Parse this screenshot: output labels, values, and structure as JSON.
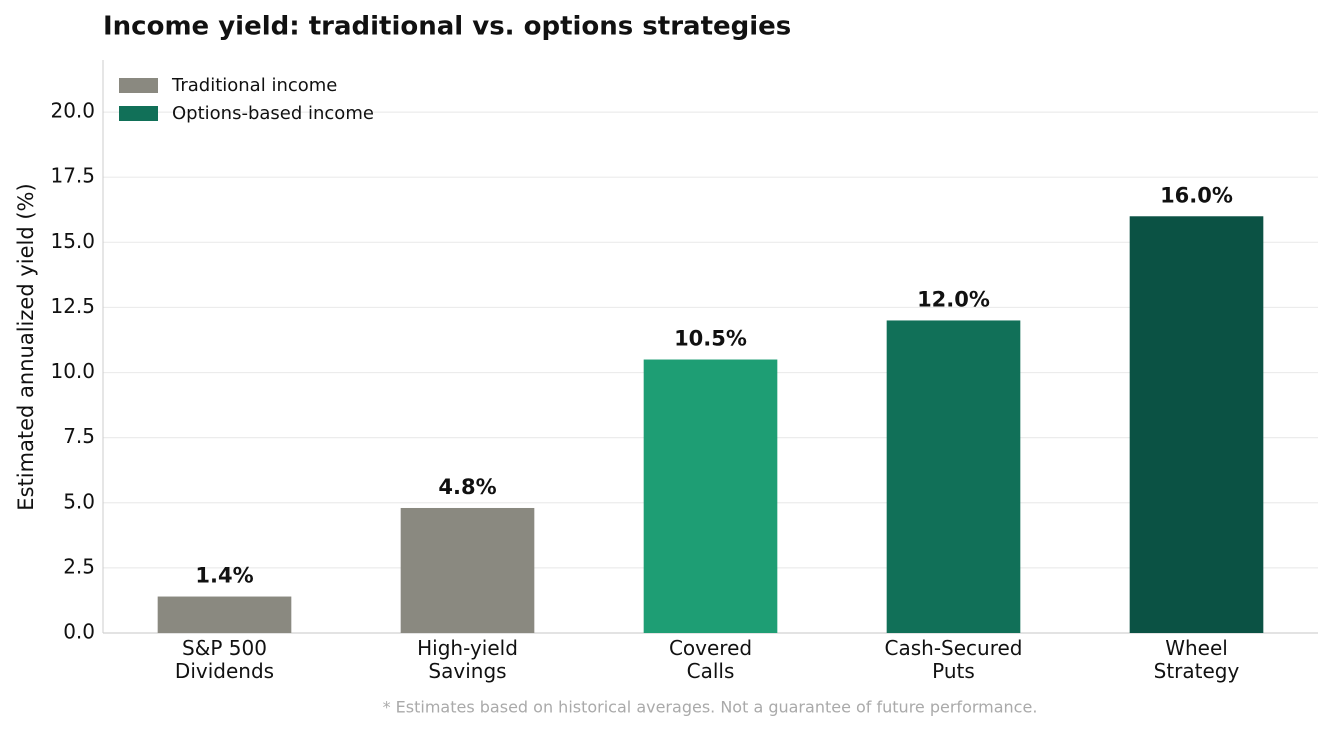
{
  "chart_data": {
    "type": "bar",
    "title": "Income yield: traditional vs. options strategies",
    "y_label": "Estimated annualized yield (%)",
    "footnote": "* Estimates based on historical averages. Not a guarantee of future performance.",
    "categories": [
      "S&P 500\nDividends",
      "High-yield\nSavings",
      "Covered\nCalls",
      "Cash-Secured\nPuts",
      "Wheel\nStrategy"
    ],
    "values": [
      1.4,
      4.8,
      10.5,
      12.0,
      16.0
    ],
    "value_labels": [
      "1.4%",
      "4.8%",
      "10.5%",
      "12.0%",
      "16.0%"
    ],
    "colors": [
      "#8a8980",
      "#8a8980",
      "#1e9e74",
      "#117058",
      "#0b5244"
    ],
    "legend": [
      {
        "name": "Traditional income",
        "color": "#8a8980"
      },
      {
        "name": "Options-based income",
        "color": "#117058"
      }
    ],
    "legend_position": "upper left",
    "ylim": [
      0,
      22
    ],
    "yticks": [
      {
        "value": 0,
        "label": "0.0"
      },
      2.5,
      {
        "value": 5,
        "label": "5.0"
      },
      7.5,
      {
        "value": 10,
        "label": "10.0"
      },
      12.5,
      {
        "value": 15,
        "label": "15.0"
      },
      17.5,
      {
        "value": 20,
        "label": "20.0"
      }
    ],
    "grid": true
  }
}
